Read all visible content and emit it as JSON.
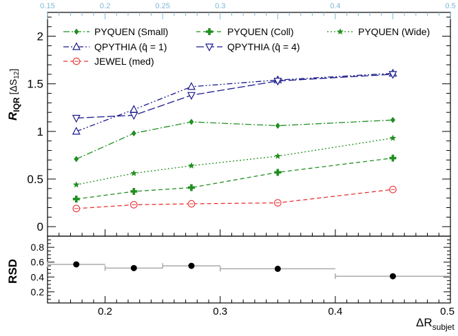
{
  "chart_data": [
    {
      "type": "line",
      "ylabel_main": "R",
      "ylabel_sub": "IQR",
      "ylabel_bracket": "[ΔS",
      "ylabel_bracket_sub": "12",
      "ylabel_bracket_close": "]",
      "xlabel_main": "ΔR",
      "xlabel_sub": "subjet",
      "xlim": [
        0.15,
        0.5
      ],
      "ylim": [
        -0.1,
        2.25
      ],
      "xticks": [
        "0.2",
        "0.3",
        "0.4",
        "0.5"
      ],
      "yticks": [
        "0",
        "0.5",
        "1",
        "1.5",
        "2"
      ],
      "top_axis_ticks": [
        "0.15",
        "0.2",
        "0.25",
        "0.3",
        "0.4",
        "0.5"
      ],
      "x": [
        0.175,
        0.225,
        0.275,
        0.35,
        0.45
      ],
      "series": [
        {
          "name": "PYQUEN (Small)",
          "values": [
            0.71,
            0.98,
            1.1,
            1.06,
            1.12
          ],
          "color": "#1f8f1f",
          "dash": "dashdot",
          "marker": "diamond"
        },
        {
          "name": "PYQUEN (Coll)",
          "values": [
            0.29,
            0.37,
            0.41,
            0.57,
            0.72
          ],
          "color": "#1f8f1f",
          "dash": "dashed",
          "marker": "cross"
        },
        {
          "name": "PYQUEN (Wide)",
          "values": [
            0.44,
            0.56,
            0.64,
            0.74,
            0.93
          ],
          "color": "#1f8f1f",
          "dash": "dotted",
          "marker": "star"
        },
        {
          "name": "QPYTHIA (q̂ = 1)",
          "values": [
            1.0,
            1.23,
            1.47,
            1.54,
            1.61
          ],
          "color": "#1a1a8c",
          "dash": "dashdotdot",
          "marker": "triangle-up"
        },
        {
          "name": "QPYTHIA (q̂ = 4)",
          "values": [
            1.14,
            1.17,
            1.38,
            1.53,
            1.6
          ],
          "color": "#1a1a8c",
          "dash": "longdash",
          "marker": "triangle-down"
        },
        {
          "name": "JEWEL (med)",
          "values": [
            0.19,
            0.23,
            0.24,
            0.25,
            0.39
          ],
          "color": "#e83030",
          "dash": "dashed",
          "marker": "circle-plus"
        }
      ]
    },
    {
      "type": "scatter",
      "ylabel": "RSD",
      "ylim": [
        0.05,
        0.95
      ],
      "yticks": [
        "0.2",
        "0.4",
        "0.6",
        "0.8"
      ],
      "bins": [
        [
          0.15,
          0.2
        ],
        [
          0.2,
          0.25
        ],
        [
          0.25,
          0.3
        ],
        [
          0.3,
          0.4
        ],
        [
          0.4,
          0.5
        ]
      ],
      "x": [
        0.175,
        0.225,
        0.275,
        0.35,
        0.45
      ],
      "values": [
        0.57,
        0.52,
        0.55,
        0.51,
        0.41
      ]
    }
  ]
}
